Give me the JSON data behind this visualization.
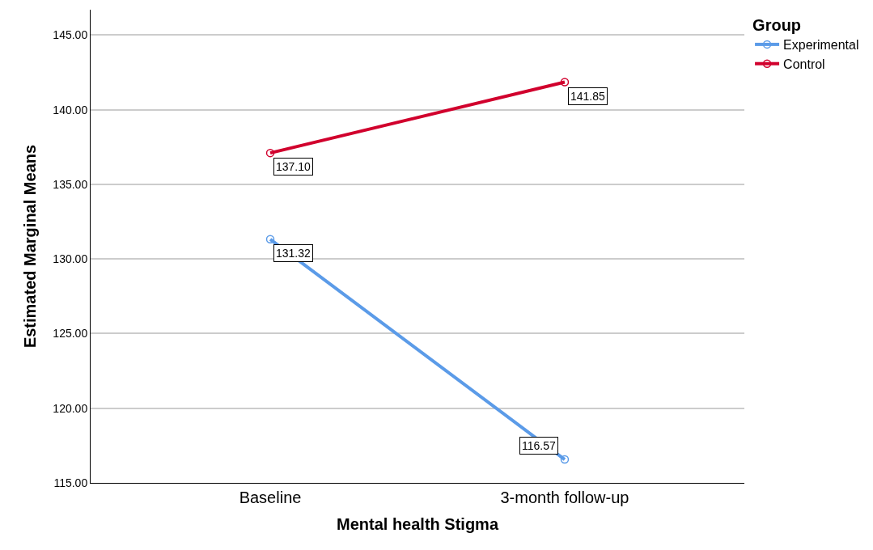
{
  "chart_data": {
    "type": "line",
    "xlabel": "Mental health Stigma",
    "ylabel": "Estimated Marginal Means",
    "legend_title": "Group",
    "categories": [
      "Baseline",
      "3-month follow-up"
    ],
    "series": [
      {
        "name": "Experimental",
        "color": "#5b9be8",
        "values": [
          131.32,
          116.57
        ],
        "value_labels": [
          "131.32",
          "116.57"
        ]
      },
      {
        "name": "Control",
        "color": "#d1002d",
        "values": [
          137.1,
          141.85
        ],
        "value_labels": [
          "137.10",
          "141.85"
        ]
      }
    ],
    "ylim": [
      115,
      146.7
    ],
    "yticks": [
      {
        "value": 115,
        "label": "115.00"
      },
      {
        "value": 120,
        "label": "120.00"
      },
      {
        "value": 125,
        "label": "125.00"
      },
      {
        "value": 130,
        "label": "130.00"
      },
      {
        "value": 135,
        "label": "135.00"
      },
      {
        "value": 140,
        "label": "140.00"
      },
      {
        "value": 145,
        "label": "145.00"
      }
    ],
    "grid": "y",
    "legend": "top right",
    "marker": "circle",
    "line_style": "solid"
  }
}
